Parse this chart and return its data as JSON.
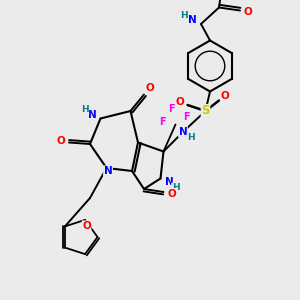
{
  "bg_color": "#ebebeb",
  "atom_colors": {
    "C": "#000000",
    "N": "#0000ff",
    "O": "#ff0000",
    "S": "#cccc00",
    "F": "#ff00ff",
    "H": "#008080"
  },
  "bond_color": "#000000"
}
